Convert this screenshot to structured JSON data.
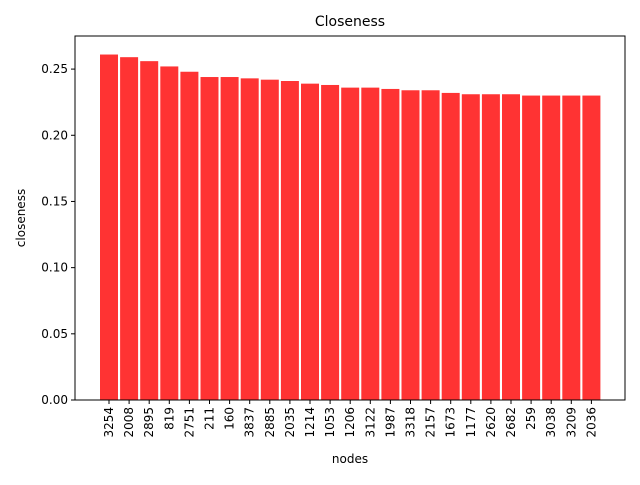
{
  "chart_data": {
    "type": "bar",
    "title": "Closeness",
    "xlabel": "nodes",
    "ylabel": "closeness",
    "ylim": [
      0,
      0.275
    ],
    "yticks": [
      "0.00",
      "0.05",
      "0.10",
      "0.15",
      "0.20",
      "0.25"
    ],
    "bar_color": "#ff3333",
    "grid": false,
    "categories": [
      "3254",
      "2008",
      "2895",
      "819",
      "2751",
      "211",
      "160",
      "3837",
      "2885",
      "2035",
      "1214",
      "1053",
      "1206",
      "3122",
      "1987",
      "3318",
      "2157",
      "1673",
      "1177",
      "2620",
      "2682",
      "259",
      "3038",
      "3209",
      "2036"
    ],
    "values": [
      0.261,
      0.259,
      0.256,
      0.252,
      0.248,
      0.244,
      0.244,
      0.243,
      0.242,
      0.241,
      0.239,
      0.238,
      0.236,
      0.236,
      0.235,
      0.234,
      0.234,
      0.232,
      0.231,
      0.231,
      0.231,
      0.23,
      0.23,
      0.23,
      0.23
    ]
  }
}
